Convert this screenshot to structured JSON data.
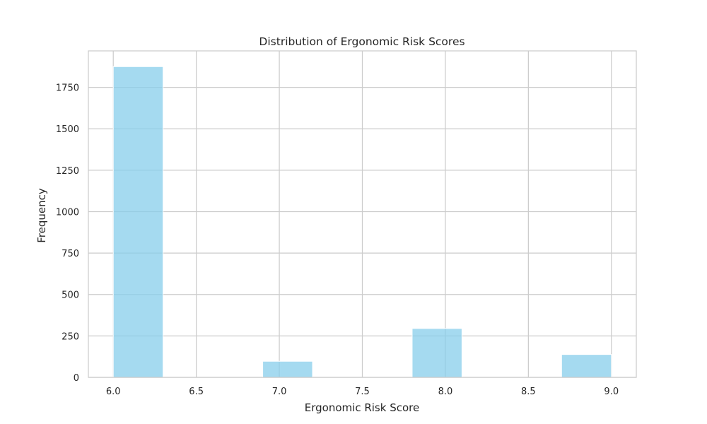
{
  "chart_data": {
    "type": "bar",
    "title": "Distribution of Ergonomic Risk Scores",
    "xlabel": "Ergonomic Risk Score",
    "ylabel": "Frequency",
    "bins": [
      {
        "start": 6.0,
        "end": 6.3,
        "value": 1875
      },
      {
        "start": 6.3,
        "end": 6.6,
        "value": 0
      },
      {
        "start": 6.6,
        "end": 6.9,
        "value": 0
      },
      {
        "start": 6.9,
        "end": 7.2,
        "value": 97
      },
      {
        "start": 7.2,
        "end": 7.5,
        "value": 0
      },
      {
        "start": 7.5,
        "end": 7.8,
        "value": 0
      },
      {
        "start": 7.8,
        "end": 8.1,
        "value": 295
      },
      {
        "start": 8.1,
        "end": 8.4,
        "value": 0
      },
      {
        "start": 8.4,
        "end": 8.7,
        "value": 0
      },
      {
        "start": 8.7,
        "end": 9.0,
        "value": 138
      }
    ],
    "xlim": [
      5.85,
      9.15
    ],
    "ylim": [
      0,
      1970
    ],
    "xticks": [
      6.0,
      6.5,
      7.0,
      7.5,
      8.0,
      8.5,
      9.0
    ],
    "xtick_labels": [
      "6.0",
      "6.5",
      "7.0",
      "7.5",
      "8.0",
      "8.5",
      "9.0"
    ],
    "yticks": [
      0,
      250,
      500,
      750,
      1000,
      1250,
      1500,
      1750
    ],
    "ytick_labels": [
      "0",
      "250",
      "500",
      "750",
      "1000",
      "1250",
      "1500",
      "1750"
    ],
    "grid": true,
    "bar_color": "#87ceeb",
    "grid_color": "#cccccc"
  }
}
